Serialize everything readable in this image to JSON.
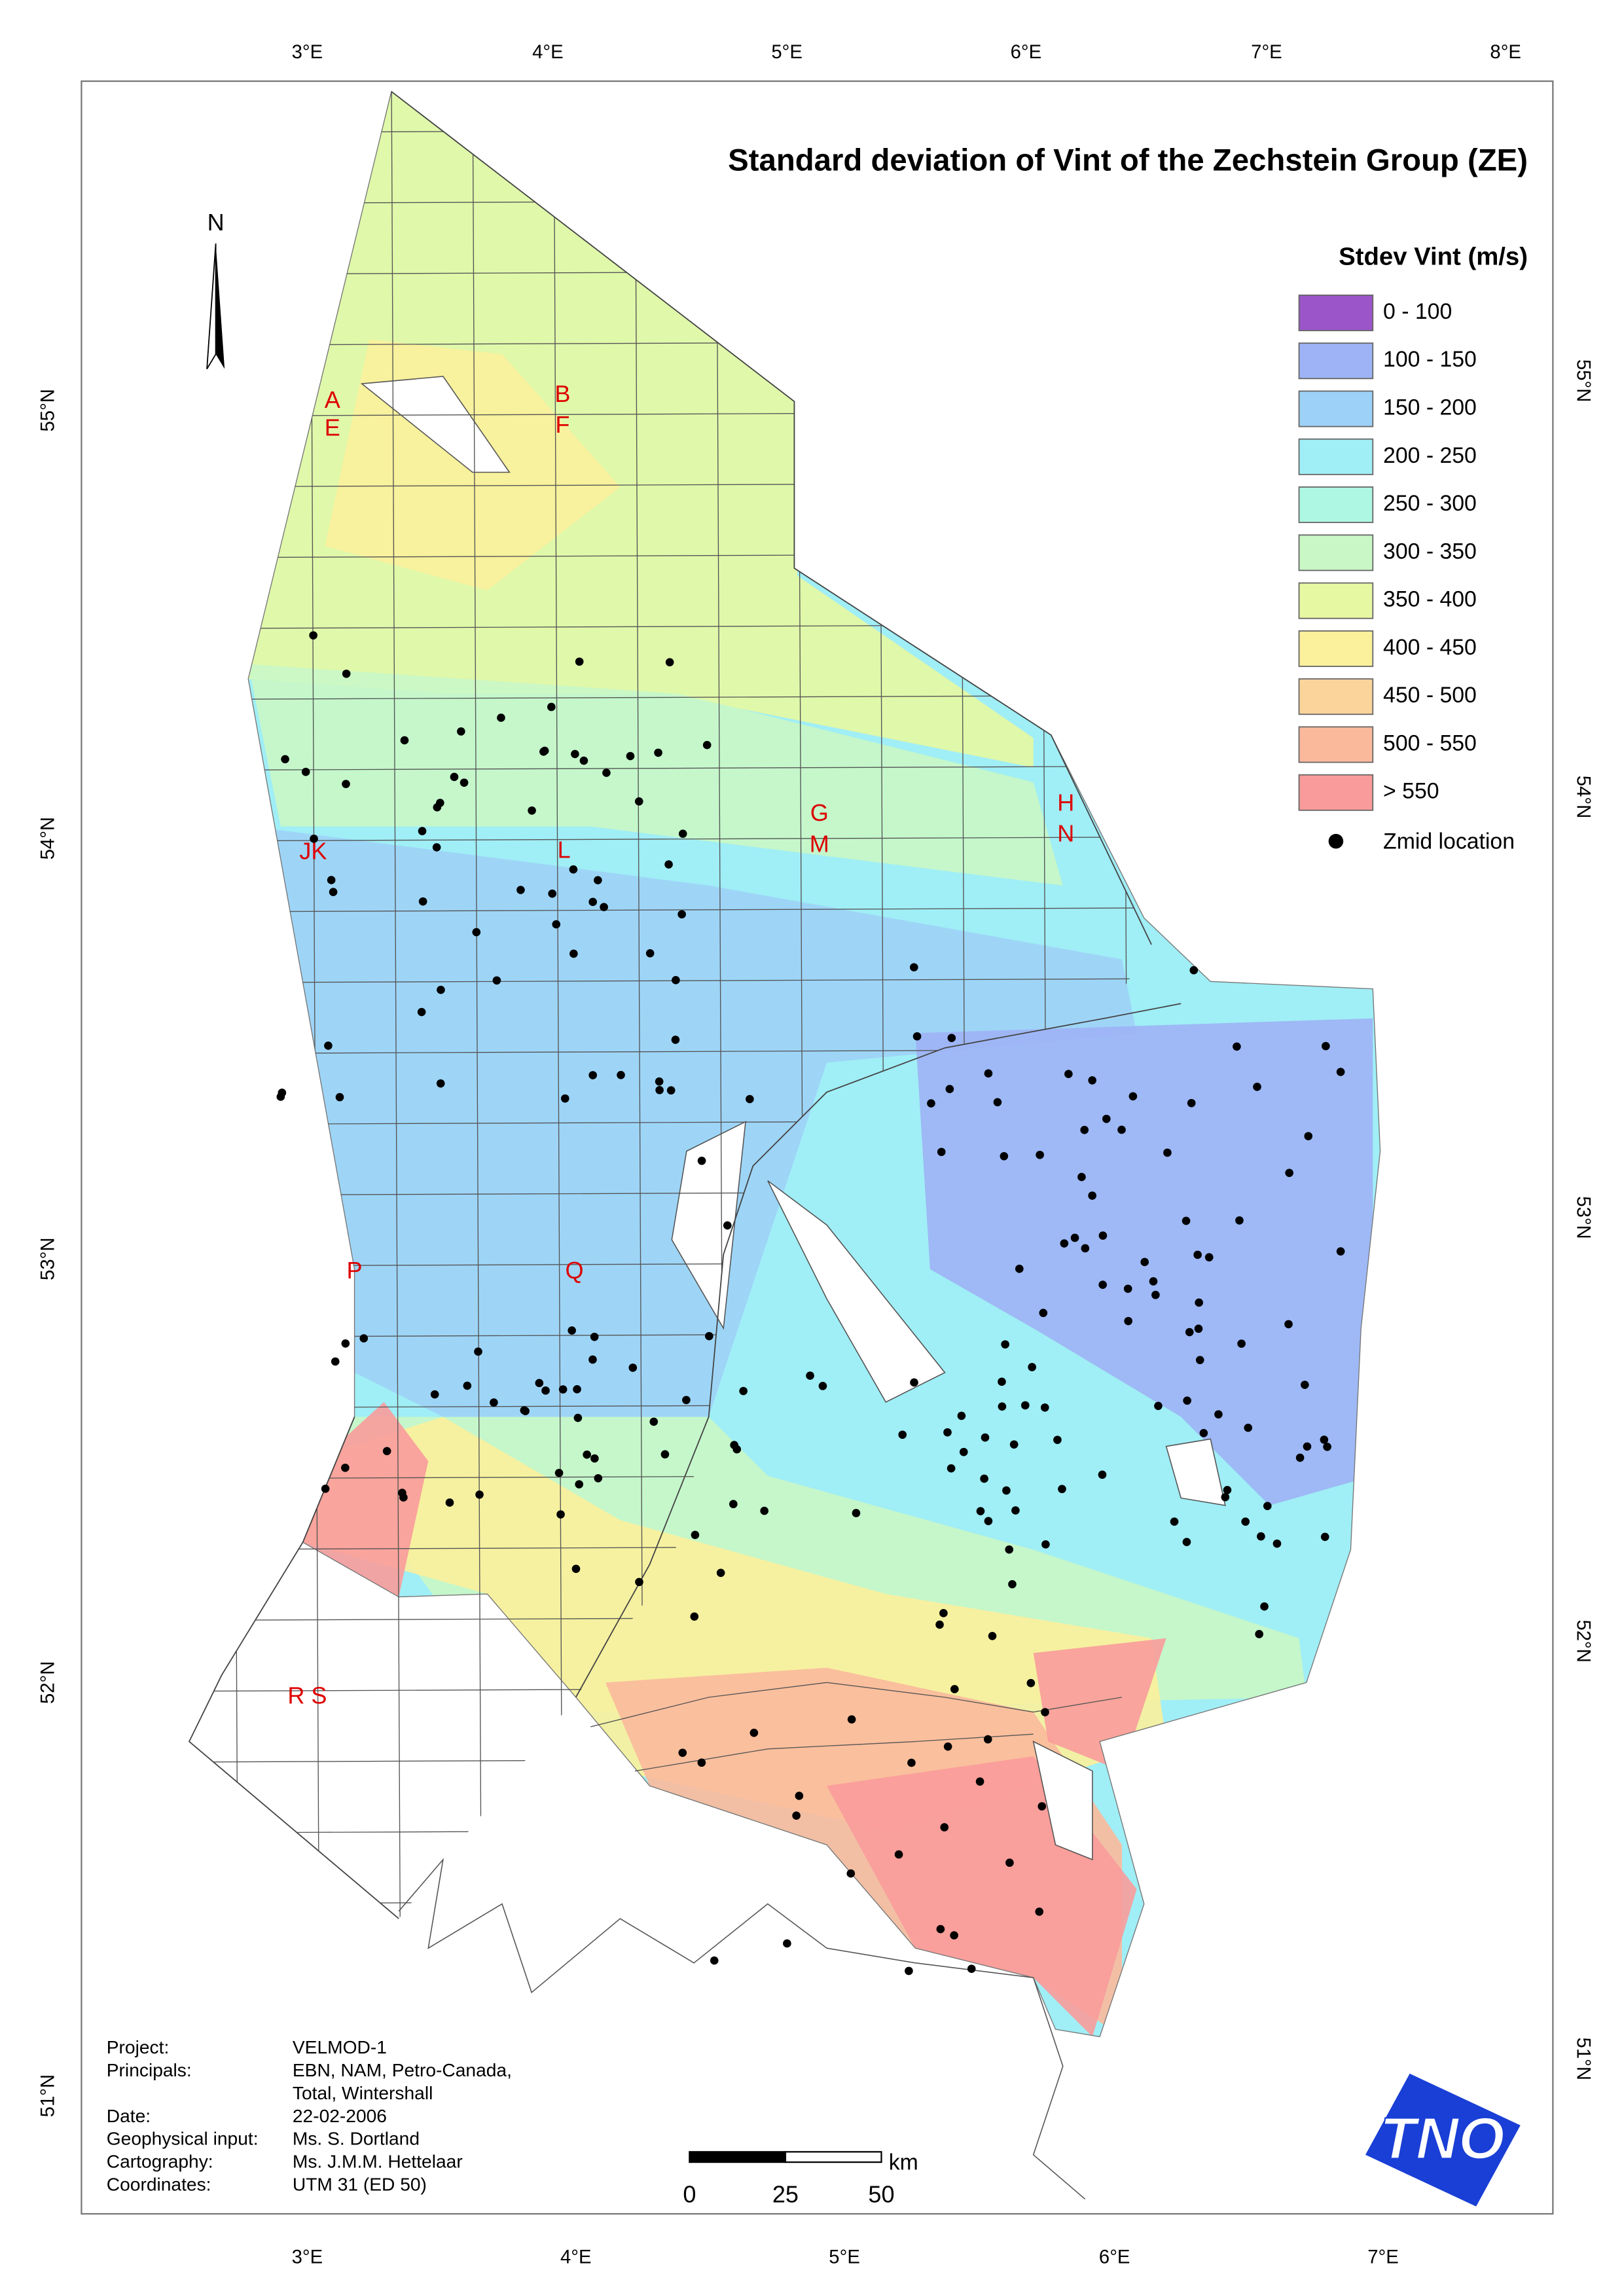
{
  "title": "Standard deviation of Vint of the Zechstein Group (ZE)",
  "north": "N",
  "graticule": {
    "top": [
      "3°E",
      "4°E",
      "5°E",
      "6°E",
      "7°E",
      "8°E"
    ],
    "bottom": [
      "3°E",
      "4°E",
      "5°E",
      "6°E",
      "7°E"
    ],
    "left": [
      "55°N",
      "54°N",
      "53°N",
      "52°N",
      "51°N"
    ],
    "right": [
      "55°N",
      "54°N",
      "53°N",
      "52°N",
      "51°N"
    ]
  },
  "legend": {
    "title": "Stdev Vint (m/s)",
    "items": [
      {
        "label": "0 - 100",
        "color": "#9b55c8"
      },
      {
        "label": "100 - 150",
        "color": "#9db3f5"
      },
      {
        "label": "150 - 200",
        "color": "#9dd1f7"
      },
      {
        "label": "200 - 250",
        "color": "#a0eef6"
      },
      {
        "label": "250 - 300",
        "color": "#aef7e2"
      },
      {
        "label": "300 - 350",
        "color": "#c9f7c6"
      },
      {
        "label": "350 - 400",
        "color": "#e7f8a2"
      },
      {
        "label": "400 - 450",
        "color": "#fbf09b"
      },
      {
        "label": "450 - 500",
        "color": "#fbd49c"
      },
      {
        "label": "500 - 550",
        "color": "#fbb99c"
      },
      {
        "label": "> 550",
        "color": "#f99b9b"
      }
    ],
    "points_label": "Zmid location"
  },
  "blocks": [
    "A",
    "E",
    "B",
    "F",
    "G",
    "M",
    "H",
    "N",
    "JK",
    "L",
    "P",
    "Q",
    "R S"
  ],
  "info": [
    {
      "label": "Project:",
      "value": [
        "VELMOD-1"
      ]
    },
    {
      "label": "Principals:",
      "value": [
        "EBN, NAM, Petro-Canada,",
        "Total, Wintershall"
      ]
    },
    {
      "label": "Date:",
      "value": [
        "22-02-2006"
      ]
    },
    {
      "label": "Geophysical input:",
      "value": [
        "Ms. S. Dortland"
      ]
    },
    {
      "label": "Cartography:",
      "value": [
        "Ms. J.M.M. Hettelaar"
      ]
    },
    {
      "label": "Coordinates:",
      "value": [
        "UTM 31 (ED 50)"
      ]
    }
  ],
  "scale_bar": {
    "unit": "km",
    "ticks": [
      "0",
      "25",
      "50"
    ]
  },
  "logo": "TNO"
}
